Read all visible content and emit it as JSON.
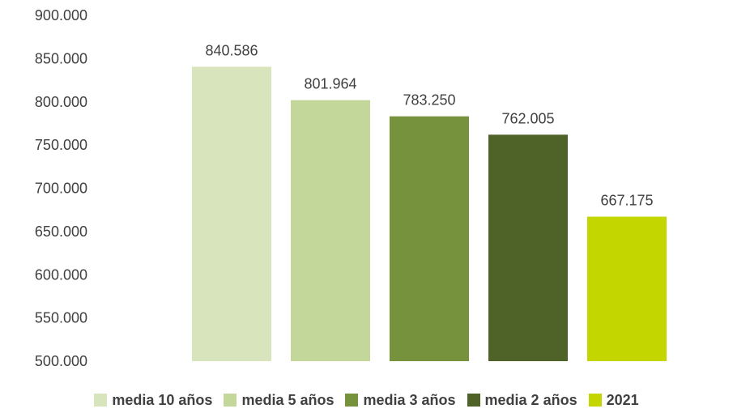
{
  "chart_data": {
    "type": "bar",
    "categories": [
      "media 10 años",
      "media 5 años",
      "media 3 años",
      "media 2 años",
      "2021"
    ],
    "values": [
      840586,
      801964,
      783250,
      762005,
      667175
    ],
    "value_labels": [
      "840.586",
      "801.964",
      "783.250",
      "762.005",
      "667.175"
    ],
    "colors": [
      "#d8e4bc",
      "#c4d79b",
      "#76923c",
      "#4f6228",
      "#c3d600"
    ],
    "ylim": [
      500000,
      900000
    ],
    "y_ticks": [
      500000,
      550000,
      600000,
      650000,
      700000,
      750000,
      800000,
      850000,
      900000
    ],
    "y_tick_labels": [
      "500.000",
      "550.000",
      "600.000",
      "650.000",
      "700.000",
      "750.000",
      "800.000",
      "850.000",
      "900.000"
    ],
    "grid": false,
    "legend_position": "bottom",
    "title": "",
    "xlabel": "",
    "ylabel": ""
  }
}
